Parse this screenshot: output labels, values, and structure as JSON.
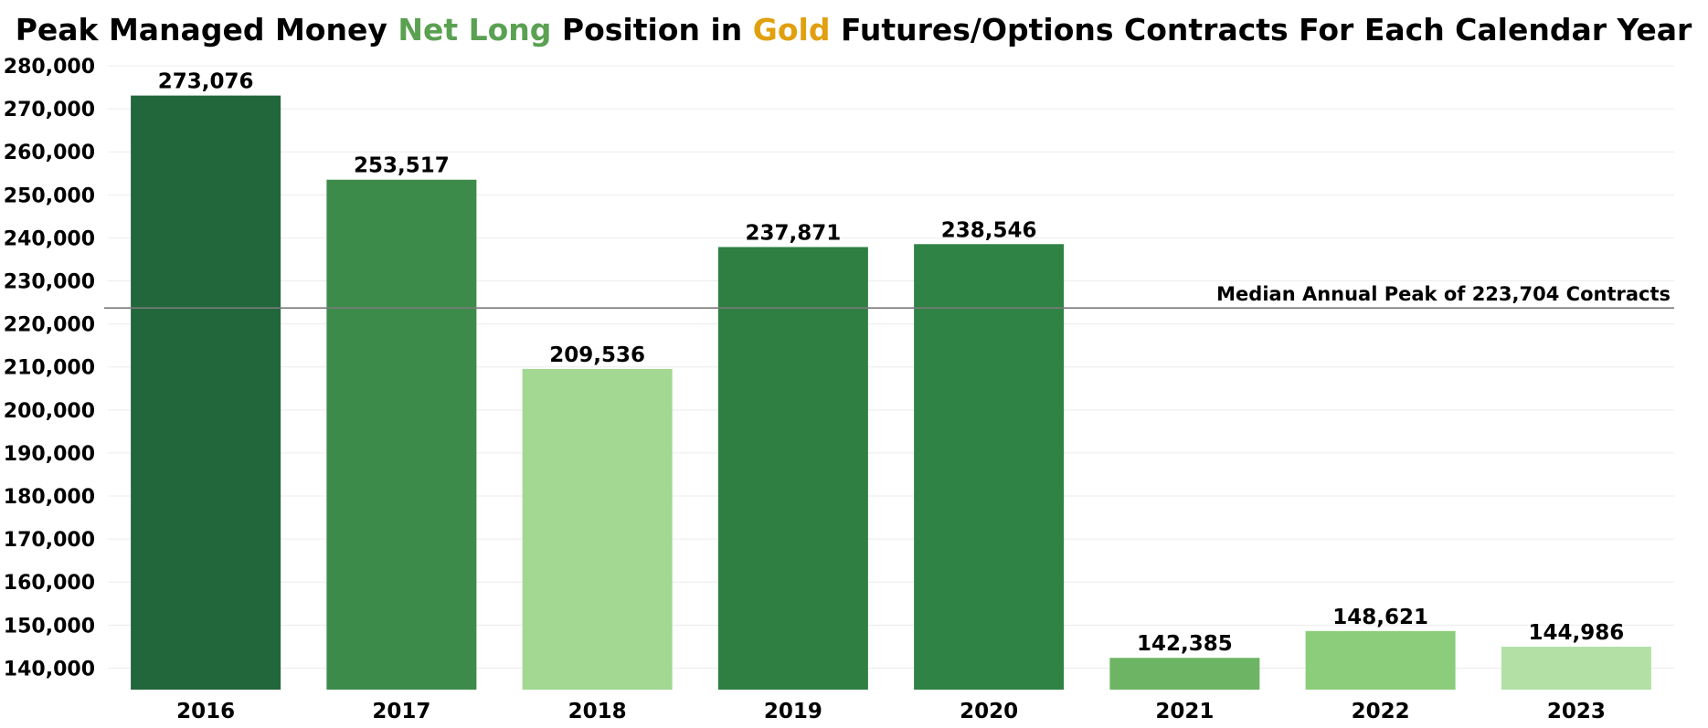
{
  "chart_data": {
    "type": "bar",
    "title_parts": [
      {
        "text": "Peak Managed Money ",
        "color": "#000000"
      },
      {
        "text": "Net Long",
        "color": "#5aa152"
      },
      {
        "text": " Position in ",
        "color": "#000000"
      },
      {
        "text": "Gold",
        "color": "#e0a00f"
      },
      {
        "text": " Futures/Options Contracts For Each Calendar Year",
        "color": "#000000"
      }
    ],
    "categories": [
      "2016",
      "2017",
      "2018",
      "2019",
      "2020",
      "2021",
      "2022",
      "2023"
    ],
    "values": [
      273076,
      253517,
      209536,
      237871,
      238546,
      142385,
      148621,
      144986
    ],
    "value_labels": [
      "273,076",
      "253,517",
      "209,536",
      "237,871",
      "238,546",
      "142,385",
      "148,621",
      "144,986"
    ],
    "bar_colors": [
      "#22663b",
      "#3d8b4b",
      "#a2d891",
      "#2f7f43",
      "#2f8344",
      "#6db564",
      "#8bcd7b",
      "#b2e0a5"
    ],
    "ylim": [
      135000,
      280000
    ],
    "yticks": [
      140000,
      150000,
      160000,
      170000,
      180000,
      190000,
      200000,
      210000,
      220000,
      230000,
      240000,
      250000,
      260000,
      270000,
      280000
    ],
    "ytick_labels": [
      "140,000",
      "150,000",
      "160,000",
      "170,000",
      "180,000",
      "190,000",
      "200,000",
      "210,000",
      "220,000",
      "230,000",
      "240,000",
      "250,000",
      "260,000",
      "270,000",
      "280,000"
    ],
    "grid": true,
    "reference_line": {
      "value": 223704,
      "label": "Median Annual Peak of 223,704 Contracts"
    }
  }
}
